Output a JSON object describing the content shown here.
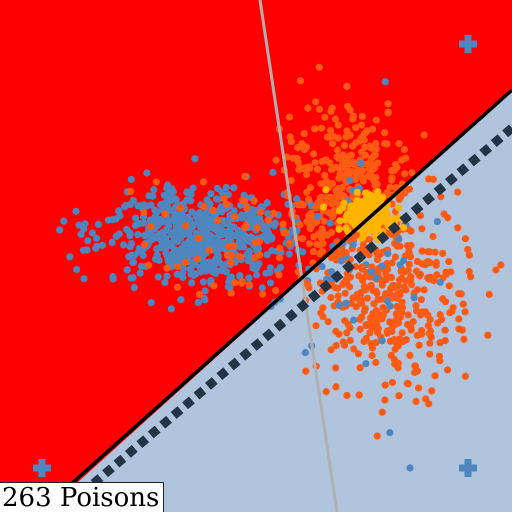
{
  "caption": "263 Poisons",
  "colors": {
    "region_a": "#ff0000",
    "region_b": "#b0c4de",
    "class_a_points": "#ff5a14",
    "class_b_points": "#4e86bf",
    "poison_points": "#ffb400",
    "markers": "#4e86bf",
    "boundary_solid": "#000000",
    "boundary_dashed": "#243447",
    "boundary_gray": "#b0b0b0"
  },
  "marker_icon": "plus-icon",
  "poison_count": 263
}
